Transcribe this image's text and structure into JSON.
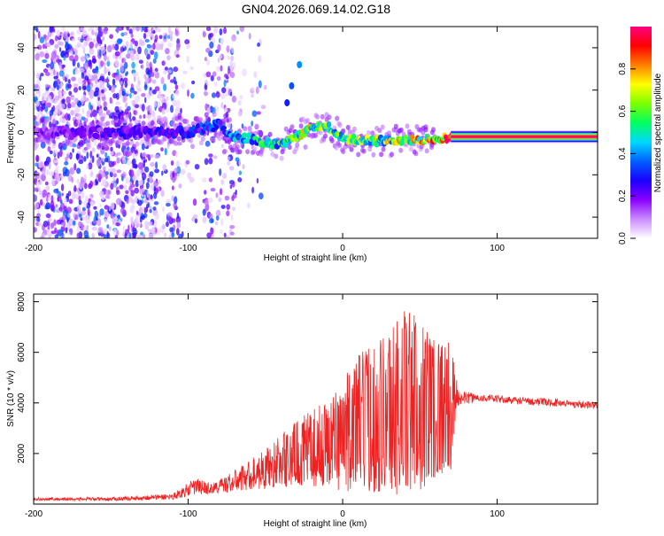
{
  "title": "GN04.2026.069.14.02.G18",
  "chart_data": [
    {
      "type": "heatmap",
      "name": "spectrogram",
      "xlabel": "Height of straight line (km)",
      "ylabel": "Frequency (Hz)",
      "xlim": [
        -200,
        165
      ],
      "ylim": [
        -50,
        50
      ],
      "xticks": [
        -200,
        -100,
        0,
        100
      ],
      "yticks": [
        -40,
        -20,
        0,
        20,
        40
      ],
      "colorbar": {
        "label": "Normalized spectral amplitude",
        "range": [
          0,
          1
        ],
        "ticks": [
          "0.0",
          "0.2",
          "0.4",
          "0.6",
          "0.8"
        ],
        "colors": [
          "#ffffff",
          "#c98cff",
          "#8a00ff",
          "#1a00ff",
          "#0060ff",
          "#00d8ff",
          "#00ff60",
          "#7cff00",
          "#ffff00",
          "#ff8000",
          "#ff0000",
          "#ff0080"
        ]
      },
      "signal_track": {
        "description": "Dominant frequency ridge near 0 Hz",
        "x": [
          -200,
          -150,
          -100,
          -80,
          -72,
          -60,
          -50,
          -40,
          -30,
          -20,
          -10,
          0,
          20,
          40,
          60,
          70,
          100,
          165
        ],
        "y": [
          0,
          0,
          0,
          4,
          -2,
          -3,
          -5,
          -6,
          -2,
          2,
          3,
          -3,
          -4,
          -4,
          -3,
          -2,
          -2,
          -2
        ],
        "amplitude": [
          0.15,
          0.2,
          0.25,
          0.3,
          0.35,
          0.4,
          0.45,
          0.5,
          0.55,
          0.6,
          0.55,
          0.5,
          0.55,
          0.6,
          0.7,
          0.95,
          1.0,
          1.0
        ]
      },
      "secondary_feature": {
        "description": "Short rising streak",
        "x": [
          -36,
          -33,
          -28
        ],
        "y": [
          14,
          22,
          32
        ]
      }
    },
    {
      "type": "line",
      "name": "snr",
      "xlabel": "Height of straight line (km)",
      "ylabel": "SNR (10 * v/v)",
      "xlim": [
        -200,
        165
      ],
      "ylim": [
        0,
        8300
      ],
      "xticks": [
        -200,
        -100,
        0,
        100
      ],
      "yticks": [
        2000,
        4000,
        6000,
        8000
      ],
      "color": "#ee2222",
      "envelope": {
        "x": [
          -200,
          -150,
          -110,
          -95,
          -85,
          -70,
          -50,
          -30,
          -10,
          0,
          10,
          30,
          40,
          60,
          70,
          75,
          90,
          110,
          140,
          165
        ],
        "mean": [
          200,
          200,
          300,
          700,
          600,
          900,
          1400,
          2000,
          2400,
          2700,
          3200,
          3700,
          4000,
          3900,
          3800,
          4200,
          4200,
          4100,
          4000,
          3900
        ],
        "amp": [
          60,
          70,
          120,
          350,
          200,
          450,
          800,
          1300,
          1700,
          2200,
          2700,
          3300,
          3800,
          3000,
          2500,
          300,
          150,
          150,
          150,
          150
        ]
      }
    }
  ]
}
